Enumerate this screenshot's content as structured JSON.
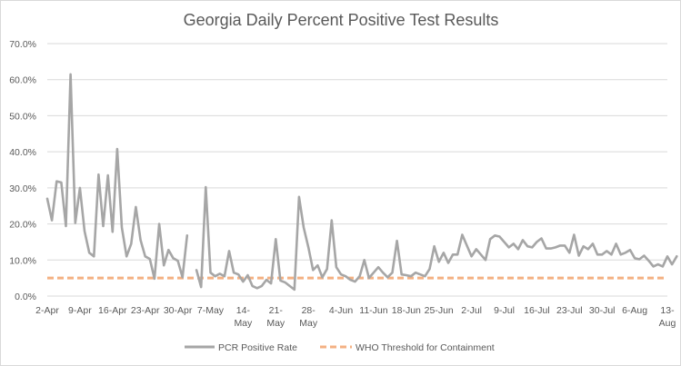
{
  "chart_data": {
    "type": "line",
    "title": "Georgia Daily Percent Positive Test Results",
    "xlabel": "",
    "ylabel": "",
    "ylim": [
      0,
      70
    ],
    "y_tick_labels": [
      "0.0%",
      "10.0%",
      "20.0%",
      "30.0%",
      "40.0%",
      "50.0%",
      "60.0%",
      "70.0%"
    ],
    "y_ticks": [
      0,
      10,
      20,
      30,
      40,
      50,
      60,
      70
    ],
    "x_range_days": [
      0,
      133
    ],
    "x_tick_labels": [
      {
        "day": 0,
        "lines": [
          "2-Apr"
        ]
      },
      {
        "day": 7,
        "lines": [
          "9-Apr"
        ]
      },
      {
        "day": 14,
        "lines": [
          "16-Apr"
        ]
      },
      {
        "day": 21,
        "lines": [
          "23-Apr"
        ]
      },
      {
        "day": 28,
        "lines": [
          "30-Apr"
        ]
      },
      {
        "day": 35,
        "lines": [
          "7-May"
        ]
      },
      {
        "day": 42,
        "lines": [
          "14-",
          "May"
        ]
      },
      {
        "day": 49,
        "lines": [
          "21-",
          "May"
        ]
      },
      {
        "day": 56,
        "lines": [
          "28-",
          "May"
        ]
      },
      {
        "day": 63,
        "lines": [
          "4-Jun"
        ]
      },
      {
        "day": 70,
        "lines": [
          "11-Jun"
        ]
      },
      {
        "day": 77,
        "lines": [
          "18-Jun"
        ]
      },
      {
        "day": 84,
        "lines": [
          "25-Jun"
        ]
      },
      {
        "day": 91,
        "lines": [
          "2-Jul"
        ]
      },
      {
        "day": 98,
        "lines": [
          "9-Jul"
        ]
      },
      {
        "day": 105,
        "lines": [
          "16-Jul"
        ]
      },
      {
        "day": 112,
        "lines": [
          "23-Jul"
        ]
      },
      {
        "day": 119,
        "lines": [
          "30-Jul"
        ]
      },
      {
        "day": 126,
        "lines": [
          "6-Aug"
        ]
      },
      {
        "day": 133,
        "lines": [
          "13-",
          "Aug"
        ]
      }
    ],
    "grid": true,
    "legend_position": "bottom",
    "series": [
      {
        "name": "PCR Positive Rate",
        "color": "#a6a6a6",
        "style": "solid",
        "segments": [
          {
            "start_day": 0,
            "values": [
              27,
              21,
              31.8,
              31.5,
              19.4,
              61.5,
              20.3,
              30,
              18,
              12,
              11,
              33.7,
              19.4,
              33.5,
              17.8,
              40.8,
              19,
              11,
              14.5,
              24.7,
              15.5,
              11,
              10.3,
              4.8,
              20,
              8.5,
              12.8,
              10.5,
              9.8,
              5.2,
              16.8
            ]
          },
          {
            "start_day": 32,
            "values": [
              7.2,
              2.5,
              30.2,
              6.5,
              5.5,
              6.2,
              5.5,
              12.5,
              6.5,
              6,
              4,
              5.8,
              2.8,
              2.2,
              2.8,
              4.5,
              3.5,
              15.8,
              4.3,
              3.8,
              2.8,
              1.8,
              27.5,
              19,
              13.5,
              7.2,
              8.5,
              5.2,
              7.5,
              21,
              8,
              6,
              5.5,
              4.5,
              4,
              5.5,
              10,
              5,
              6.5,
              8,
              6.5,
              5.2,
              6.5,
              15.3,
              6,
              5.8,
              5.5,
              6.5,
              6,
              5.5,
              7.5,
              13.8,
              9.5,
              12,
              9.2,
              11.5,
              11.5,
              17,
              14,
              11,
              13,
              11.5,
              10,
              15.8,
              16.8,
              16.5,
              15,
              13.5,
              14.5,
              13,
              15.5,
              13.8,
              13.5,
              15,
              16,
              13.2,
              13.2,
              13.5,
              14,
              14,
              12,
              17,
              11.2,
              13.8,
              13,
              14.5,
              11.5,
              11.5,
              12.5,
              11.5,
              14.5,
              11.5,
              12,
              12.8,
              10.5,
              10.2,
              11.2,
              9.8,
              8.2,
              8.8,
              8.2,
              11,
              8.8,
              11
            ]
          }
        ]
      },
      {
        "name": "WHO Threshold for Containment",
        "color": "#f4b183",
        "style": "dashed",
        "constant": 5
      }
    ]
  }
}
